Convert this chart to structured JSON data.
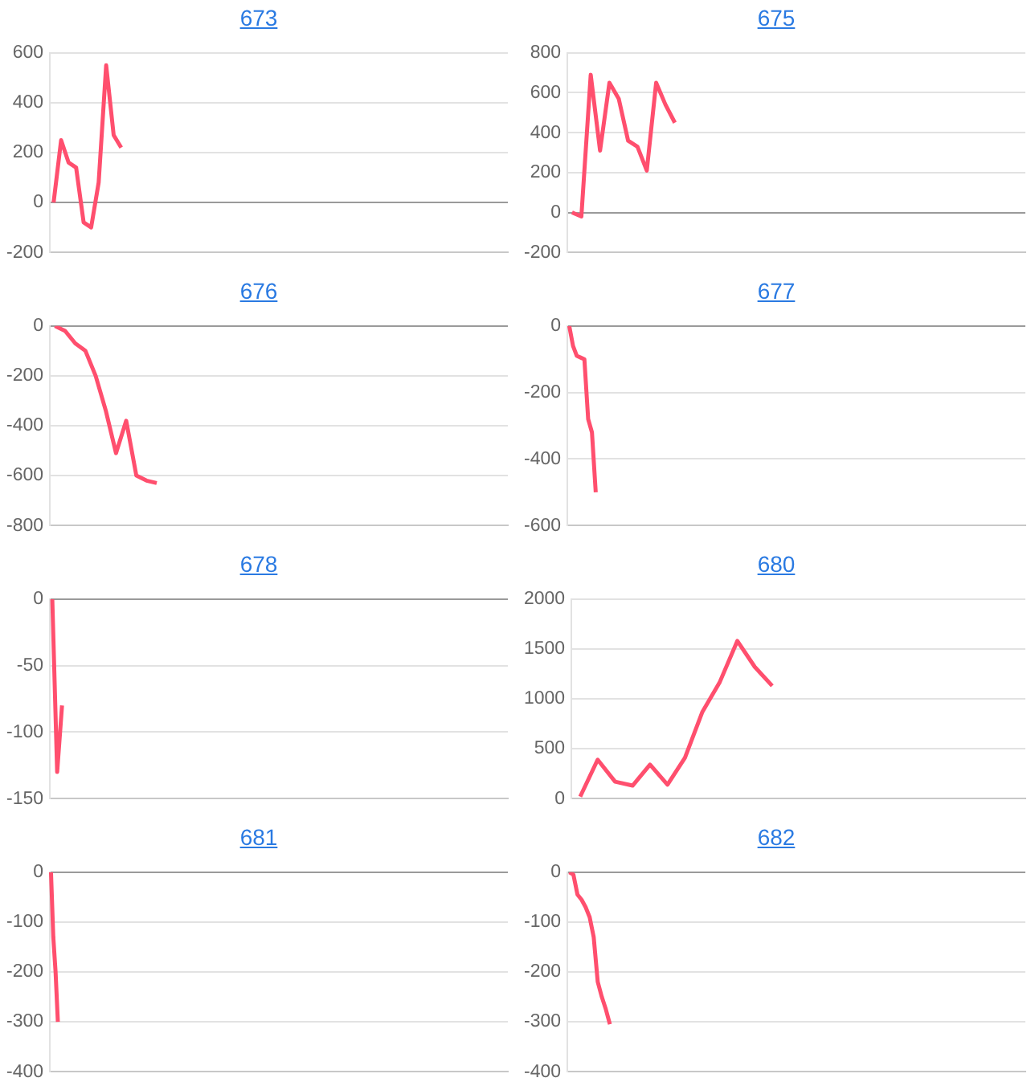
{
  "chart_data": [
    {
      "type": "line",
      "title": "673",
      "categories": [
        null,
        null,
        null,
        null,
        null,
        null,
        null,
        null,
        null,
        null,
        null,
        null,
        null,
        null,
        null,
        null,
        null,
        null,
        null,
        null,
        null,
        null,
        null,
        null,
        null,
        null,
        null,
        null,
        null,
        null,
        null,
        null,
        null,
        null,
        null,
        null,
        null,
        null,
        null,
        null,
        null,
        null,
        null,
        null,
        null,
        null,
        null,
        null,
        null,
        null,
        null,
        null,
        null,
        null,
        null,
        null,
        null,
        null,
        null,
        null,
        null
      ],
      "series": [
        {
          "color": "#ff4f6e",
          "values": [
            0,
            250,
            160,
            140,
            -80,
            -100,
            80,
            550,
            270,
            220,
            null,
            null,
            null,
            null,
            null,
            null,
            null,
            null,
            null,
            null,
            null,
            null,
            null,
            null,
            null,
            null,
            null,
            null,
            null,
            null,
            null,
            null,
            null,
            null,
            null,
            null,
            null,
            null,
            null,
            null,
            null,
            null,
            null,
            null,
            null,
            null,
            null,
            null,
            null,
            null,
            null,
            null,
            null,
            null,
            null,
            null,
            null,
            null,
            null,
            null,
            null
          ]
        }
      ],
      "ylim": [
        -200,
        600
      ],
      "yticks": [
        -200,
        0,
        200,
        400,
        600
      ],
      "grid": "y",
      "legend": false,
      "tick_labels": "y",
      "marker": "none"
    },
    {
      "type": "line",
      "title": "675",
      "categories": [
        null,
        null,
        null,
        null,
        null,
        null,
        null,
        null,
        null,
        null,
        null,
        null,
        null,
        null,
        null,
        null,
        null,
        null,
        null,
        null,
        null,
        null,
        null,
        null,
        null,
        null,
        null,
        null,
        null,
        null,
        null,
        null,
        null,
        null,
        null,
        null,
        null,
        null,
        null,
        null,
        null,
        null,
        null,
        null,
        null,
        null,
        null,
        null,
        null
      ],
      "series": [
        {
          "color": "#ff4f6e",
          "values": [
            0,
            -20,
            690,
            310,
            650,
            570,
            360,
            330,
            210,
            650,
            540,
            450,
            null,
            null,
            null,
            null,
            null,
            null,
            null,
            null,
            null,
            null,
            null,
            null,
            null,
            null,
            null,
            null,
            null,
            null,
            null,
            null,
            null,
            null,
            null,
            null,
            null,
            null,
            null,
            null,
            null,
            null,
            null,
            null,
            null,
            null,
            null,
            null,
            null
          ]
        }
      ],
      "ylim": [
        -200,
        800
      ],
      "yticks": [
        -200,
        0,
        200,
        400,
        600,
        800
      ],
      "grid": "y",
      "legend": false,
      "tick_labels": "y",
      "marker": "none"
    },
    {
      "type": "line",
      "title": "676",
      "categories": [
        null,
        null,
        null,
        null,
        null,
        null,
        null,
        null,
        null,
        null,
        null,
        null,
        null,
        null,
        null,
        null,
        null,
        null,
        null,
        null,
        null,
        null,
        null,
        null,
        null,
        null,
        null,
        null,
        null,
        null,
        null,
        null,
        null,
        null,
        null,
        null,
        null,
        null,
        null,
        null,
        null,
        null,
        null,
        null,
        null
      ],
      "series": [
        {
          "color": "#ff4f6e",
          "values": [
            0,
            -20,
            -70,
            -100,
            -200,
            -340,
            -510,
            -380,
            -600,
            -620,
            -630,
            null,
            null,
            null,
            null,
            null,
            null,
            null,
            null,
            null,
            null,
            null,
            null,
            null,
            null,
            null,
            null,
            null,
            null,
            null,
            null,
            null,
            null,
            null,
            null,
            null,
            null,
            null,
            null,
            null,
            null,
            null,
            null,
            null,
            null
          ]
        }
      ],
      "ylim": [
        -800,
        0
      ],
      "yticks": [
        -800,
        -600,
        -400,
        -200,
        0
      ],
      "grid": "y",
      "legend": false,
      "tick_labels": "y",
      "marker": "none"
    },
    {
      "type": "line",
      "title": "677",
      "categories": [
        null,
        null,
        null,
        null,
        null,
        null,
        null,
        null,
        null,
        null,
        null,
        null,
        null,
        null,
        null,
        null,
        null,
        null,
        null,
        null,
        null,
        null,
        null,
        null,
        null,
        null,
        null,
        null,
        null,
        null,
        null,
        null,
        null,
        null,
        null,
        null,
        null,
        null,
        null,
        null,
        null,
        null,
        null,
        null,
        null,
        null,
        null,
        null,
        null,
        null,
        null,
        null,
        null,
        null,
        null,
        null,
        null,
        null,
        null,
        null,
        null,
        null,
        null,
        null,
        null,
        null,
        null,
        null,
        null,
        null,
        null,
        null,
        null,
        null,
        null,
        null,
        null,
        null,
        null,
        null,
        null,
        null,
        null,
        null,
        null,
        null,
        null,
        null,
        null,
        null,
        null,
        null,
        null,
        null,
        null,
        null,
        null,
        null,
        null,
        null,
        null,
        null,
        null,
        null,
        null,
        null,
        null,
        null,
        null,
        null,
        null,
        null,
        null,
        null,
        null,
        null,
        null,
        null,
        null,
        null,
        null
      ],
      "series": [
        {
          "color": "#ff4f6e",
          "values": [
            0,
            -60,
            -90,
            -95,
            -100,
            -280,
            -320,
            -500,
            null,
            null,
            null,
            null,
            null,
            null,
            null,
            null,
            null,
            null,
            null,
            null,
            null,
            null,
            null,
            null,
            null,
            null,
            null,
            null,
            null,
            null,
            null,
            null,
            null,
            null,
            null,
            null,
            null,
            null,
            null,
            null,
            null,
            null,
            null,
            null,
            null,
            null,
            null,
            null,
            null,
            null,
            null,
            null,
            null,
            null,
            null,
            null,
            null,
            null,
            null,
            null,
            null,
            null,
            null,
            null,
            null,
            null,
            null,
            null,
            null,
            null,
            null,
            null,
            null,
            null,
            null,
            null,
            null,
            null,
            null,
            null,
            null,
            null,
            null,
            null,
            null,
            null,
            null,
            null,
            null,
            null,
            null,
            null,
            null,
            null,
            null,
            null,
            null,
            null,
            null,
            null,
            null,
            null,
            null,
            null,
            null,
            null,
            null,
            null,
            null,
            null,
            null,
            null,
            null,
            null,
            null,
            null,
            null,
            null,
            null,
            null,
            null
          ]
        }
      ],
      "ylim": [
        -600,
        0
      ],
      "yticks": [
        -600,
        -400,
        -200,
        0
      ],
      "grid": "y",
      "legend": false,
      "tick_labels": "y",
      "marker": "none"
    },
    {
      "type": "line",
      "title": "678",
      "categories": [
        null,
        null,
        null,
        null,
        null,
        null,
        null,
        null,
        null,
        null,
        null,
        null,
        null,
        null,
        null,
        null,
        null,
        null,
        null,
        null,
        null,
        null,
        null,
        null,
        null,
        null,
        null,
        null,
        null,
        null,
        null,
        null,
        null,
        null,
        null,
        null,
        null,
        null,
        null,
        null,
        null,
        null,
        null,
        null,
        null,
        null,
        null,
        null,
        null,
        null,
        null,
        null,
        null,
        null,
        null,
        null,
        null,
        null,
        null,
        null,
        null,
        null,
        null,
        null,
        null,
        null,
        null,
        null,
        null,
        null,
        null,
        null,
        null,
        null,
        null,
        null,
        null,
        null,
        null,
        null,
        null,
        null,
        null,
        null,
        null,
        null,
        null,
        null,
        null,
        null,
        null,
        null,
        null,
        null
      ],
      "series": [
        {
          "color": "#ff4f6e",
          "values": [
            0,
            -130,
            -80,
            null,
            null,
            null,
            null,
            null,
            null,
            null,
            null,
            null,
            null,
            null,
            null,
            null,
            null,
            null,
            null,
            null,
            null,
            null,
            null,
            null,
            null,
            null,
            null,
            null,
            null,
            null,
            null,
            null,
            null,
            null,
            null,
            null,
            null,
            null,
            null,
            null,
            null,
            null,
            null,
            null,
            null,
            null,
            null,
            null,
            null,
            null,
            null,
            null,
            null,
            null,
            null,
            null,
            null,
            null,
            null,
            null,
            null,
            null,
            null,
            null,
            null,
            null,
            null,
            null,
            null,
            null,
            null,
            null,
            null,
            null,
            null,
            null,
            null,
            null,
            null,
            null,
            null,
            null,
            null,
            null,
            null,
            null,
            null,
            null,
            null,
            null,
            null,
            null,
            null,
            null
          ]
        }
      ],
      "ylim": [
        -150,
        0
      ],
      "yticks": [
        -150,
        -100,
        -50,
        0
      ],
      "grid": "y",
      "legend": false,
      "tick_labels": "y",
      "marker": "none"
    },
    {
      "type": "line",
      "title": "680",
      "categories": [
        null,
        null,
        null,
        null,
        null,
        null,
        null,
        null,
        null,
        null,
        null,
        null,
        null,
        null,
        null,
        null,
        null,
        null,
        null,
        null,
        null,
        null,
        null,
        null,
        null,
        null
      ],
      "series": [
        {
          "color": "#ff4f6e",
          "values": [
            20,
            390,
            170,
            130,
            340,
            140,
            410,
            870,
            1170,
            1580,
            1320,
            1130,
            null,
            null,
            null,
            null,
            null,
            null,
            null,
            null,
            null,
            null,
            null,
            null,
            null,
            null
          ]
        }
      ],
      "ylim": [
        0,
        2000
      ],
      "yticks": [
        0,
        500,
        1000,
        1500,
        2000
      ],
      "grid": "y",
      "legend": false,
      "tick_labels": "y",
      "marker": "none"
    },
    {
      "type": "line",
      "title": "681",
      "categories": [
        null,
        null,
        null,
        null,
        null,
        null,
        null,
        null,
        null,
        null,
        null,
        null,
        null,
        null,
        null,
        null,
        null,
        null,
        null,
        null,
        null,
        null,
        null,
        null,
        null,
        null,
        null,
        null,
        null,
        null,
        null,
        null,
        null,
        null,
        null,
        null,
        null,
        null,
        null,
        null,
        null,
        null,
        null,
        null,
        null,
        null,
        null,
        null,
        null,
        null,
        null,
        null,
        null,
        null,
        null,
        null,
        null,
        null,
        null,
        null,
        null,
        null,
        null,
        null,
        null,
        null,
        null,
        null,
        null,
        null,
        null,
        null,
        null,
        null,
        null,
        null,
        null,
        null,
        null,
        null,
        null,
        null,
        null,
        null,
        null,
        null,
        null,
        null,
        null,
        null,
        null,
        null,
        null,
        null,
        null,
        null,
        null,
        null,
        null,
        null,
        null,
        null,
        null,
        null,
        null,
        null,
        null,
        null,
        null,
        null,
        null,
        null,
        null,
        null,
        null,
        null,
        null,
        null,
        null,
        null,
        null,
        null,
        null,
        null,
        null,
        null,
        null,
        null,
        null,
        null,
        null,
        null,
        null,
        null,
        null,
        null,
        null,
        null,
        null,
        null,
        null,
        null,
        null,
        null,
        null,
        null,
        null,
        null,
        null,
        null,
        null,
        null,
        null,
        null,
        null,
        null,
        null,
        null,
        null,
        null,
        null,
        null,
        null,
        null,
        null,
        null,
        null,
        null,
        null,
        null,
        null,
        null,
        null,
        null,
        null,
        null,
        null,
        null,
        null,
        null,
        null,
        null,
        null,
        null,
        null,
        null,
        null,
        null,
        null,
        null,
        null,
        null,
        null,
        null,
        null,
        null,
        null,
        null,
        null,
        null
      ],
      "series": [
        {
          "color": "#ff4f6e",
          "values": [
            0,
            -130,
            -200,
            -300,
            null,
            null,
            null,
            null,
            null,
            null,
            null,
            null,
            null,
            null,
            null,
            null,
            null,
            null,
            null,
            null,
            null,
            null,
            null,
            null,
            null,
            null,
            null,
            null,
            null,
            null,
            null,
            null,
            null,
            null,
            null,
            null,
            null,
            null,
            null,
            null,
            null,
            null,
            null,
            null,
            null,
            null,
            null,
            null,
            null,
            null,
            null,
            null,
            null,
            null,
            null,
            null,
            null,
            null,
            null,
            null,
            null,
            null,
            null,
            null,
            null,
            null,
            null,
            null,
            null,
            null,
            null,
            null,
            null,
            null,
            null,
            null,
            null,
            null,
            null,
            null,
            null,
            null,
            null,
            null,
            null,
            null,
            null,
            null,
            null,
            null,
            null,
            null,
            null,
            null,
            null,
            null,
            null,
            null,
            null,
            null,
            null,
            null,
            null,
            null,
            null,
            null,
            null,
            null,
            null,
            null,
            null,
            null,
            null,
            null,
            null,
            null,
            null,
            null,
            null,
            null,
            null,
            null,
            null,
            null,
            null,
            null,
            null,
            null,
            null,
            null,
            null,
            null,
            null,
            null,
            null,
            null,
            null,
            null,
            null,
            null,
            null,
            null,
            null,
            null,
            null,
            null,
            null,
            null,
            null,
            null,
            null,
            null,
            null,
            null,
            null,
            null,
            null,
            null,
            null,
            null,
            null,
            null,
            null,
            null,
            null,
            null,
            null,
            null,
            null,
            null,
            null,
            null,
            null,
            null,
            null,
            null,
            null,
            null,
            null,
            null,
            null,
            null,
            null,
            null,
            null,
            null,
            null,
            null,
            null,
            null,
            null,
            null,
            null,
            null,
            null,
            null,
            null,
            null,
            null,
            null
          ]
        }
      ],
      "ylim": [
        -400,
        0
      ],
      "yticks": [
        -400,
        -300,
        -200,
        -100,
        0
      ],
      "grid": "y",
      "legend": false,
      "tick_labels": "y",
      "marker": "none"
    },
    {
      "type": "line",
      "title": "682",
      "categories": [
        null,
        null,
        null,
        null,
        null,
        null,
        null,
        null,
        null,
        null,
        null,
        null,
        null,
        null,
        null,
        null,
        null,
        null,
        null,
        null,
        null,
        null,
        null,
        null,
        null,
        null,
        null,
        null,
        null,
        null,
        null,
        null,
        null,
        null,
        null,
        null,
        null,
        null,
        null,
        null,
        null,
        null,
        null,
        null,
        null,
        null,
        null,
        null,
        null,
        null,
        null,
        null,
        null,
        null,
        null,
        null,
        null,
        null,
        null,
        null,
        null,
        null,
        null,
        null,
        null,
        null,
        null,
        null,
        null,
        null,
        null,
        null,
        null,
        null,
        null,
        null,
        null,
        null,
        null,
        null,
        null,
        null,
        null,
        null,
        null,
        null,
        null,
        null,
        null,
        null,
        null,
        null,
        null,
        null,
        null,
        null,
        null,
        null,
        null,
        null,
        null,
        null,
        null,
        null,
        null,
        null,
        null,
        null,
        null,
        null,
        null,
        null,
        null
      ],
      "series": [
        {
          "color": "#ff4f6e",
          "values": [
            0,
            -5,
            -45,
            -55,
            -70,
            -90,
            -130,
            -220,
            -250,
            -275,
            -305,
            null,
            null,
            null,
            null,
            null,
            null,
            null,
            null,
            null,
            null,
            null,
            null,
            null,
            null,
            null,
            null,
            null,
            null,
            null,
            null,
            null,
            null,
            null,
            null,
            null,
            null,
            null,
            null,
            null,
            null,
            null,
            null,
            null,
            null,
            null,
            null,
            null,
            null,
            null,
            null,
            null,
            null,
            null,
            null,
            null,
            null,
            null,
            null,
            null,
            null,
            null,
            null,
            null,
            null,
            null,
            null,
            null,
            null,
            null,
            null,
            null,
            null,
            null,
            null,
            null,
            null,
            null,
            null,
            null,
            null,
            null,
            null,
            null,
            null,
            null,
            null,
            null,
            null,
            null,
            null,
            null,
            null,
            null,
            null,
            null,
            null,
            null,
            null,
            null,
            null,
            null,
            null,
            null,
            null,
            null,
            null,
            null,
            null,
            null,
            null,
            null,
            null
          ]
        }
      ],
      "ylim": [
        -400,
        0
      ],
      "yticks": [
        -400,
        -300,
        -200,
        -100,
        0
      ],
      "grid": "y",
      "legend": false,
      "tick_labels": "y",
      "marker": "none"
    }
  ]
}
